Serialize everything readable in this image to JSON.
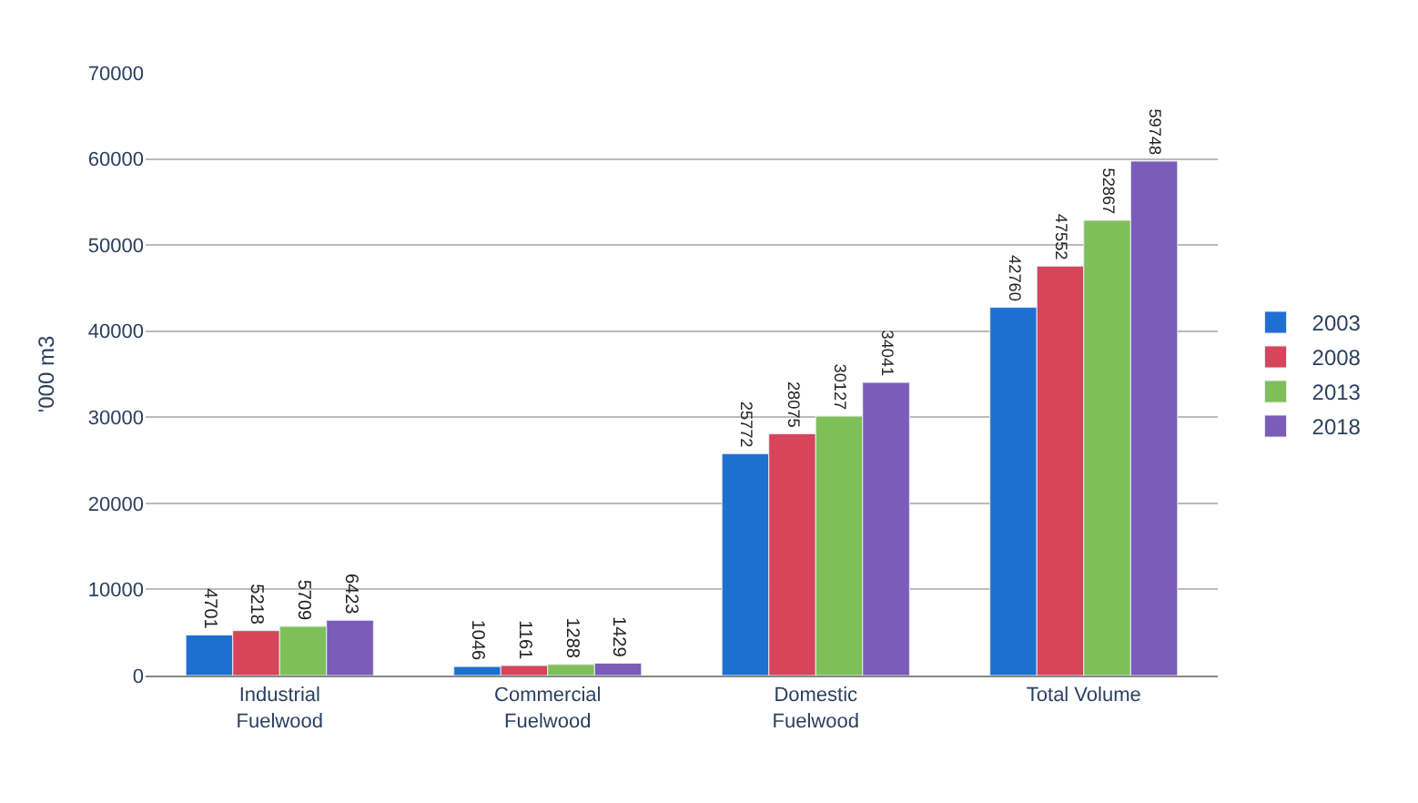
{
  "chart_data": {
    "type": "bar",
    "ylabel": "'000 m3",
    "categories": [
      "Industrial Fuelwood",
      "Commercial Fuelwood",
      "Domestic Fuelwood",
      "Total Volume"
    ],
    "series": [
      {
        "name": "2003",
        "color": "#1f6fd1",
        "values": [
          4701,
          1046,
          25772,
          42760
        ]
      },
      {
        "name": "2008",
        "color": "#d6455a",
        "values": [
          5218,
          1161,
          28075,
          47552
        ]
      },
      {
        "name": "2013",
        "color": "#7fbf5a",
        "values": [
          5709,
          1288,
          30127,
          52867
        ]
      },
      {
        "name": "2018",
        "color": "#7b5cb8",
        "values": [
          6423,
          1429,
          34041,
          59748
        ]
      }
    ],
    "ylim": [
      0,
      70000
    ],
    "yticks": [
      0,
      10000,
      20000,
      30000,
      40000,
      50000,
      60000,
      70000
    ],
    "grid": "y",
    "legend": "right",
    "data_labels": true
  }
}
